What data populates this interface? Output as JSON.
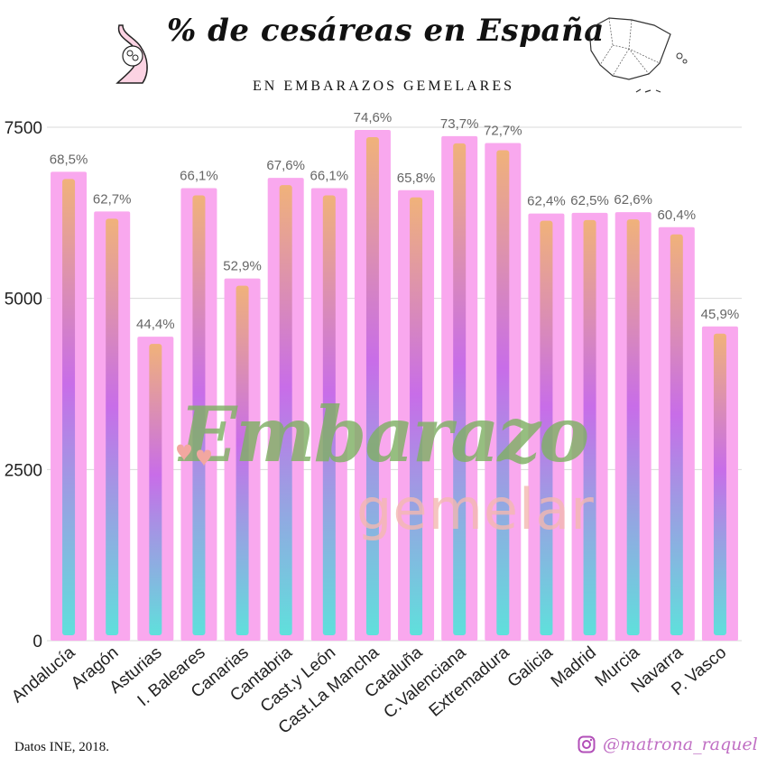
{
  "title": "% de cesáreas en España",
  "subtitle": "EN EMBARAZOS GEMELARES",
  "source": "Datos INE, 2018.",
  "handle": "@matrona_raquel",
  "watermark": {
    "line1": "Embarazo",
    "line2": "gemelar"
  },
  "colors": {
    "bar_frame": "#f9a8ee",
    "gradient_top": "#f0b27a",
    "gradient_mid": "#c86de8",
    "gradient_bottom": "#5fe0dc",
    "watermark_green": "#7fb064",
    "watermark_pink": "#f2b8b0",
    "handle": "#c06fc4"
  },
  "icons": [
    "pregnant-belly-icon",
    "spain-map-icon",
    "instagram-icon",
    "hearts-icon"
  ],
  "chart_data": {
    "type": "bar",
    "categories": [
      "Andalucía",
      "Aragón",
      "Asturias",
      "I. Baleares",
      "Canarias",
      "Cantabria",
      "Cast.y León",
      "Cast.La Mancha",
      "Cataluña",
      "C.Valenciana",
      "Extremadura",
      "Galicia",
      "Madrid",
      "Murcia",
      "Navarra",
      "P. Vasco"
    ],
    "values": [
      6850,
      6270,
      4440,
      6610,
      5290,
      6760,
      6610,
      7460,
      6580,
      7370,
      7270,
      6240,
      6250,
      6260,
      6040,
      4590
    ],
    "data_labels": [
      "68,5%",
      "62,7%",
      "44,4%",
      "66,1%",
      "52,9%",
      "67,6%",
      "66,1%",
      "74,6%",
      "65,8%",
      "73,7%",
      "72,7%",
      "62,4%",
      "62,5%",
      "62,6%",
      "60,4%",
      "45,9%"
    ],
    "yticks": [
      0,
      2500,
      5000,
      7500
    ],
    "ytick_labels": [
      "0",
      "2500",
      "5000",
      "7500"
    ],
    "ylim": [
      0,
      7500
    ],
    "grid": true,
    "legend": "none"
  }
}
